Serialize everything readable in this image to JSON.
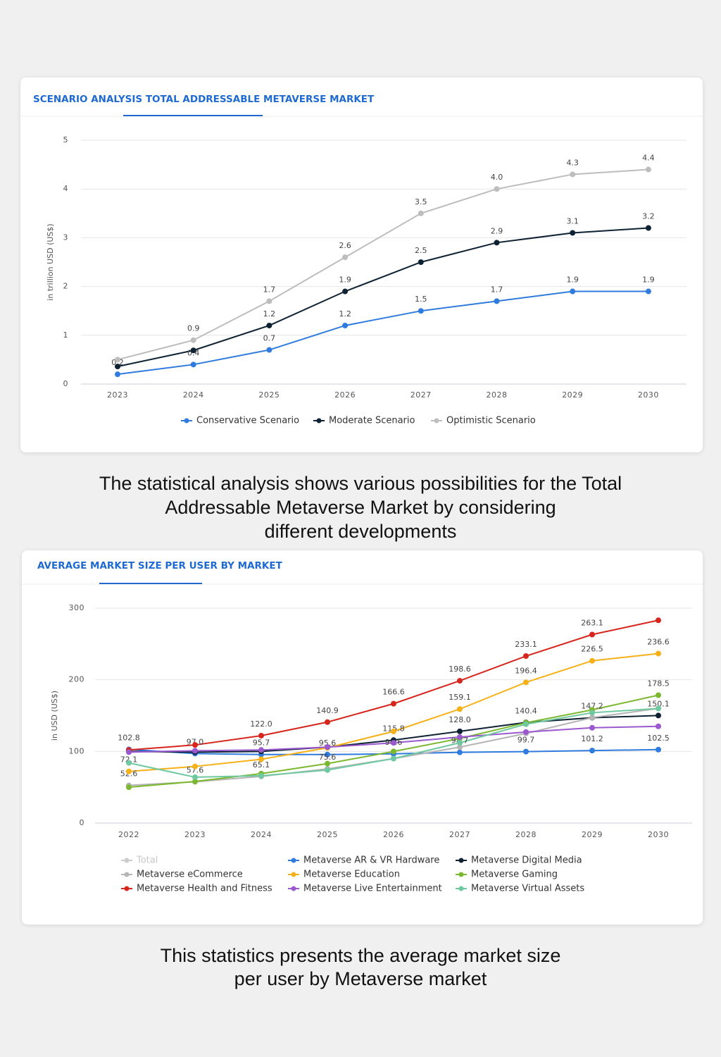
{
  "chart_data": [
    {
      "type": "line",
      "title": "SCENARIO ANALYSIS TOTAL ADDRESSABLE METAVERSE MARKET",
      "y_label": "in trillion USD (US$)",
      "categories": [
        "2023",
        "2024",
        "2025",
        "2026",
        "2027",
        "2028",
        "2029",
        "2030"
      ],
      "ylim": [
        0,
        5
      ],
      "yticks": [
        0,
        1,
        2,
        3,
        4,
        5
      ],
      "grid": true,
      "legend": "bottom",
      "series": [
        {
          "name": "Conservative Scenario",
          "color": "#2f7bde",
          "values": [
            0.2,
            0.4,
            0.7,
            1.2,
            1.5,
            1.7,
            1.9,
            1.9
          ],
          "value_labels": [
            "0.2",
            "0.4",
            "0.7",
            "1.2",
            "1.5",
            "1.7",
            "1.9",
            "1.9"
          ]
        },
        {
          "name": "Moderate Scenario",
          "color": "#0f2233",
          "values": [
            0.36,
            0.69,
            1.2,
            1.9,
            2.5,
            2.9,
            3.1,
            3.2
          ],
          "value_labels": [
            null,
            null,
            "1.2",
            "1.9",
            "2.5",
            "2.9",
            "3.1",
            "3.2"
          ]
        },
        {
          "name": "Optimistic Scenario",
          "color": "#bdbdbd",
          "values": [
            0.5,
            0.9,
            1.7,
            2.6,
            3.5,
            4.0,
            4.3,
            4.4
          ],
          "value_labels": [
            null,
            "0.9",
            "1.7",
            "2.6",
            "3.5",
            "4.0",
            "4.3",
            "4.4"
          ]
        }
      ]
    },
    {
      "type": "line",
      "title": "AVERAGE MARKET SIZE PER USER BY MARKET",
      "y_label": "in USD (US$)",
      "categories": [
        "2022",
        "2023",
        "2024",
        "2025",
        "2026",
        "2027",
        "2028",
        "2029",
        "2030"
      ],
      "ylim": [
        0,
        300
      ],
      "yticks": [
        0,
        100,
        200,
        300
      ],
      "grid": true,
      "legend": "bottom",
      "series": [
        {
          "name": "Total",
          "color": "#cccccc",
          "hidden": true,
          "values": [
            null,
            null,
            null,
            null,
            null,
            null,
            null,
            null,
            null
          ]
        },
        {
          "name": "Metaverse AR & VR Hardware",
          "color": "#2f7bde",
          "values": [
            102.8,
            97.0,
            95.7,
            95.6,
            96.6,
            98.7,
            99.7,
            101.2,
            102.5
          ],
          "value_labels": [
            "102.8",
            "97.0",
            "95.7",
            "95.6",
            "96.6",
            "98.7",
            "99.7",
            "101.2",
            "102.5"
          ]
        },
        {
          "name": "Metaverse Digital Media",
          "color": "#0f2233",
          "values": [
            100,
            99,
            100,
            106,
            115.8,
            128.0,
            140.4,
            147,
            150.1
          ],
          "value_labels": [
            null,
            null,
            null,
            null,
            "115.8",
            "128.0",
            "140.4",
            null,
            "150.1"
          ]
        },
        {
          "name": "Metaverse eCommerce",
          "color": "#b5b5b5",
          "values": [
            52.6,
            57.6,
            65.1,
            75.6,
            90,
            106,
            125,
            147.2,
            160
          ],
          "value_labels": [
            "52.6",
            "57.6",
            "65.1",
            "75.6",
            null,
            null,
            null,
            "147.2",
            null
          ]
        },
        {
          "name": "Metaverse Education",
          "color": "#f5b117",
          "values": [
            72.1,
            79,
            89,
            105,
            128,
            159.1,
            196.4,
            226.5,
            236.6
          ],
          "value_labels": [
            "72.1",
            null,
            null,
            null,
            null,
            "159.1",
            "196.4",
            "226.5",
            "236.6"
          ]
        },
        {
          "name": "Metaverse Gaming",
          "color": "#7cb82f",
          "values": [
            50,
            58,
            69,
            83,
            100,
            118,
            140,
            158,
            178.5
          ],
          "value_labels": [
            null,
            null,
            null,
            null,
            null,
            null,
            null,
            null,
            "178.5"
          ]
        },
        {
          "name": "Metaverse Health and Fitness",
          "color": "#d7261e",
          "values": [
            102,
            109,
            122.0,
            140.9,
            166.6,
            198.6,
            233.1,
            263.1,
            283
          ],
          "value_labels": [
            null,
            null,
            "122.0",
            "140.9",
            "166.6",
            "198.6",
            "233.1",
            "263.1",
            null
          ]
        },
        {
          "name": "Metaverse Live Entertainment",
          "color": "#9b59d0",
          "values": [
            99,
            101,
            102,
            106,
            112,
            120,
            127,
            133,
            135
          ]
        },
        {
          "name": "Metaverse Virtual Assets",
          "color": "#6fc9a0",
          "values": [
            84,
            64,
            66,
            74,
            90,
            112,
            138,
            154,
            160
          ]
        }
      ]
    }
  ],
  "captions": [
    {
      "lines": [
        "The statistical analysis shows various possibilities for the Total",
        "Addressable Metaverse Market by considering",
        "different developments"
      ]
    },
    {
      "lines": [
        "This statistics presents the average market size",
        "per user by Metaverse market"
      ]
    }
  ]
}
